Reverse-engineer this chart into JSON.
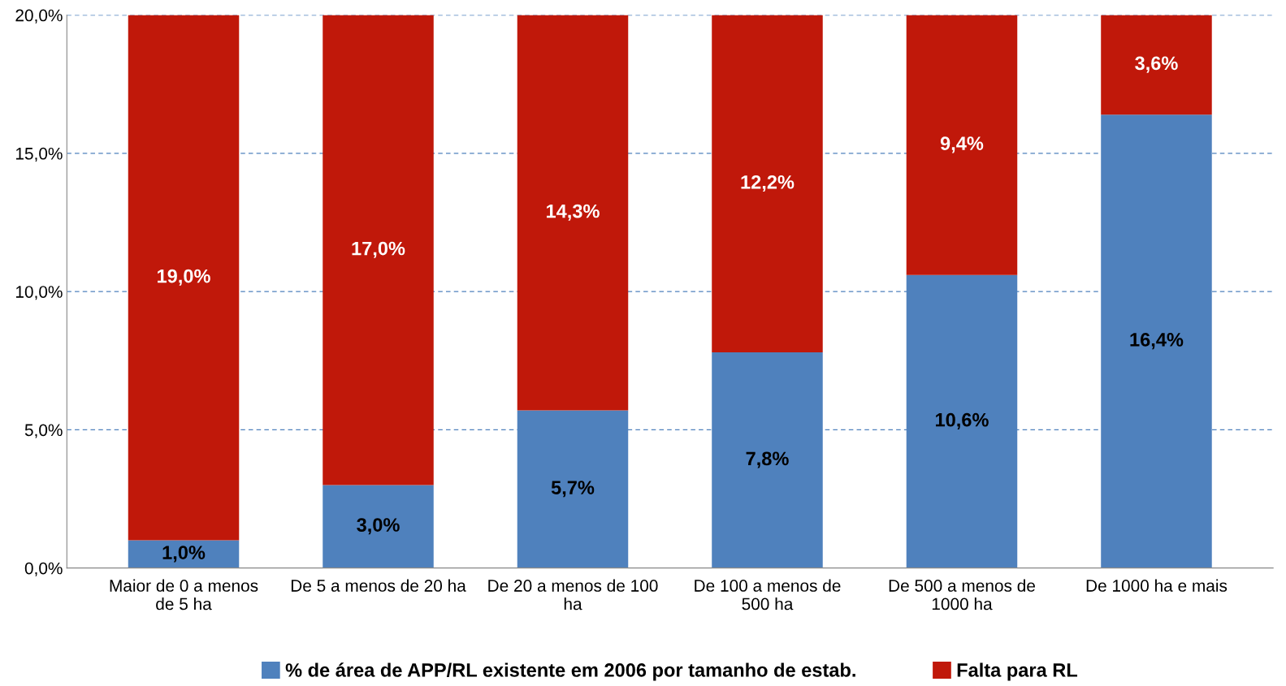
{
  "chart_data": {
    "type": "bar",
    "stacked": true,
    "categories": [
      "Maior de 0 a menos\nde 5 ha",
      "De 5 a menos de 20 ha",
      "De 20 a menos de 100\nha",
      "De 100 a menos de\n500 ha",
      "De 500 a menos de\n1000 ha",
      "De 1000 ha e mais"
    ],
    "series": [
      {
        "name": "% de área de APP/RL existente em 2006 por tamanho de estab.",
        "color": "#4f81bd",
        "values": [
          1.0,
          3.0,
          5.7,
          7.8,
          10.6,
          16.4
        ],
        "value_labels": [
          "1,0%",
          "3,0%",
          "5,7%",
          "7,8%",
          "10,6%",
          "16,4%"
        ]
      },
      {
        "name": "Falta para RL",
        "color": "#c0180a",
        "values": [
          19.0,
          17.0,
          14.3,
          12.2,
          9.4,
          3.6
        ],
        "value_labels": [
          "19,0%",
          "17,0%",
          "14,3%",
          "12,2%",
          "9,4%",
          "3,6%"
        ]
      }
    ],
    "ylim": [
      0,
      20
    ],
    "yticks": [
      {
        "value": 0,
        "label": "0,0%"
      },
      {
        "value": 5,
        "label": "5,0%"
      },
      {
        "value": 10,
        "label": "10,0%"
      },
      {
        "value": 15,
        "label": "15,0%"
      },
      {
        "value": 20,
        "label": "20,0%"
      }
    ],
    "grid": "y",
    "legend": "bottom"
  }
}
